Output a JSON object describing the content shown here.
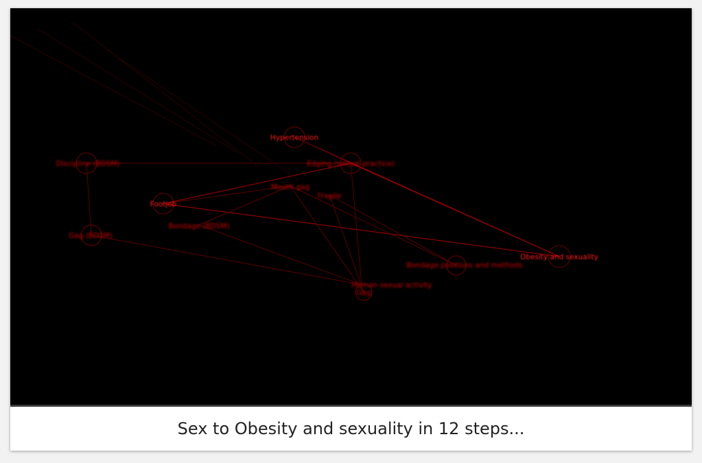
{
  "graph": {
    "colors": {
      "background": "#000000",
      "node": "#ff1a1a",
      "edge": "#b00000"
    },
    "nodes": [
      {
        "id": "hypertension",
        "label": "Hypertension",
        "focus": true
      },
      {
        "id": "discipline",
        "label": "Discipline (BDSM)",
        "focus": false
      },
      {
        "id": "edging",
        "label": "Edging (sexual practice)",
        "focus": false
      },
      {
        "id": "mouthgag",
        "label": "Mouth gag",
        "focus": false
      },
      {
        "id": "fragile",
        "label": "Fragile",
        "focus": false
      },
      {
        "id": "footjob",
        "label": "Footjob",
        "focus": true
      },
      {
        "id": "bondage",
        "label": "Bondage (BDSM)",
        "focus": false
      },
      {
        "id": "gagbdsm",
        "label": "Gag (BDSM)",
        "focus": false
      },
      {
        "id": "obesity",
        "label": "Obesity and sexuality",
        "focus": true
      },
      {
        "id": "bondagepos",
        "label": "Bondage positions and methods",
        "focus": false
      },
      {
        "id": "human",
        "label": "Human sexual activity",
        "focus": false
      },
      {
        "id": "gag",
        "label": "Gag",
        "focus": false
      }
    ],
    "edges": [
      [
        "discipline",
        "edging"
      ],
      [
        "discipline",
        "gagbdsm"
      ],
      [
        "hypertension",
        "obesity"
      ],
      [
        "edging",
        "obesity"
      ],
      [
        "edging",
        "footjob"
      ],
      [
        "footjob",
        "obesity"
      ],
      [
        "gagbdsm",
        "human"
      ],
      [
        "mouthgag",
        "gag"
      ],
      [
        "mouthgag",
        "bondagepos"
      ],
      [
        "fragile",
        "gag"
      ],
      [
        "fragile",
        "bondagepos"
      ],
      [
        "bondage",
        "human"
      ],
      [
        "edging",
        "human"
      ],
      [
        "mouthgag",
        "bondage"
      ],
      [
        "hypertension",
        "edging"
      ],
      [
        "footjob",
        "mouthgag"
      ]
    ]
  },
  "caption": "Sex to Obesity and sexuality in 12 steps..."
}
